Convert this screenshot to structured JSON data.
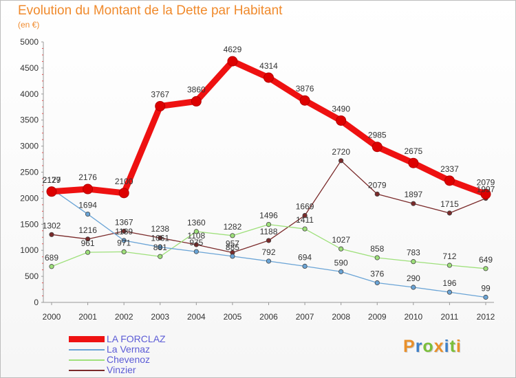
{
  "header": {
    "title": "Evolution du Montant de la Dette par Habitant",
    "subtitle": "(en €)"
  },
  "brand": {
    "letters": [
      "P",
      "r",
      "o",
      "x",
      "i",
      "t",
      "i"
    ],
    "letter_colors": [
      "#e9902a",
      "#3d7fc8",
      "#7bbf3a",
      "#e9902a",
      "#3d7fc8",
      "#7bbf3a",
      "#e9902a"
    ]
  },
  "chart_data": {
    "type": "line",
    "title": "Evolution du Montant de la Dette par Habitant",
    "subtitle": "(en €)",
    "xlabel": "",
    "ylabel": "",
    "categories": [
      "2000",
      "2001",
      "2002",
      "2003",
      "2004",
      "2005",
      "2006",
      "2007",
      "2008",
      "2009",
      "2010",
      "2011",
      "2012"
    ],
    "ylim": [
      0,
      5000
    ],
    "yticks": [
      0,
      500,
      1000,
      1500,
      2000,
      2500,
      3000,
      3500,
      4000,
      4500,
      5000
    ],
    "grid": false,
    "legend_position": "bottom-left",
    "series": [
      {
        "name": "Vinzier",
        "color": "#7a2a2a",
        "values": [
          1302,
          1216,
          1367,
          1238,
          1108,
          957,
          1188,
          1669,
          2720,
          2079,
          1897,
          1715,
          1997
        ]
      },
      {
        "name": "Chevenoz",
        "color": "#9ee07a",
        "values": [
          689,
          961,
          971,
          881,
          1360,
          1282,
          1496,
          1411,
          1027,
          858,
          783,
          712,
          649
        ]
      },
      {
        "name": "La Vernaz",
        "color": "#6aa4d6",
        "values": [
          2179,
          1694,
          1189,
          1061,
          975,
          885,
          792,
          694,
          590,
          376,
          290,
          196,
          99
        ]
      },
      {
        "name": "LA FORCLAZ",
        "color": "#ee1111",
        "values": [
          2127,
          2176,
          2100,
          3767,
          3860,
          4629,
          4314,
          3876,
          3490,
          2985,
          2675,
          2337,
          2079
        ]
      }
    ],
    "legend": [
      "LA FORCLAZ",
      "La Vernaz",
      "Chevenoz",
      "Vinzier"
    ]
  }
}
